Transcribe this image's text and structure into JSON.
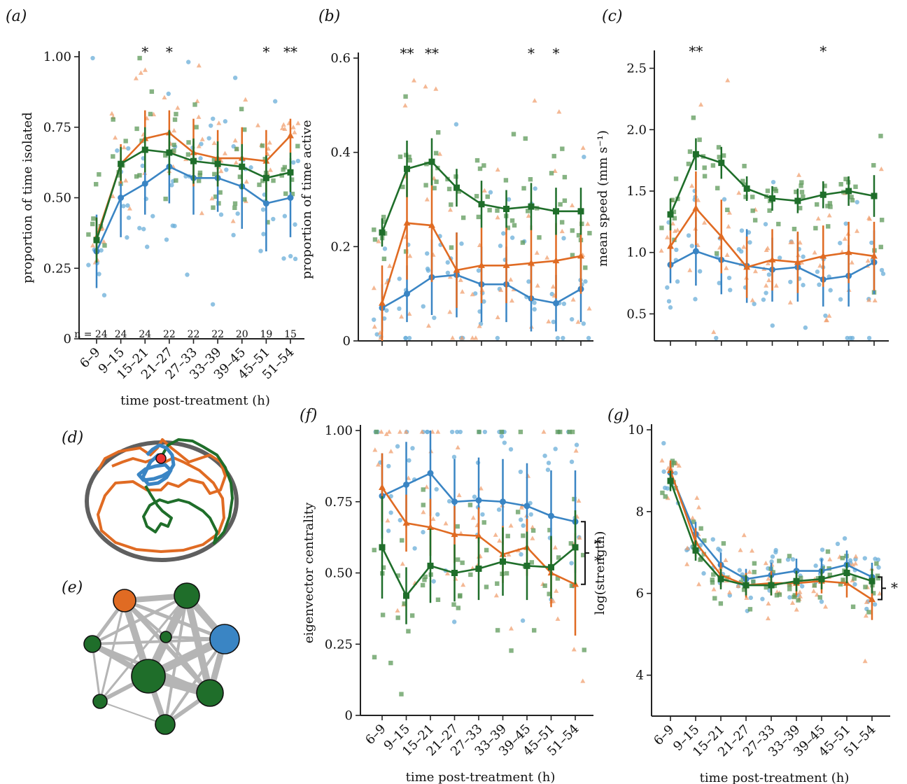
{
  "colors": {
    "blue": "#3a85c4",
    "orange": "#e06b23",
    "green": "#1f6e2a",
    "blue_pt": "#6aaed8",
    "orange_pt": "#f0a070",
    "green_pt": "#5e9a5a"
  },
  "panel_labels": {
    "a": "(a)",
    "b": "(b)",
    "c": "(c)",
    "d": "(d)",
    "e": "(e)",
    "f": "(f)",
    "g": "(g)"
  },
  "shared_xlabel": "time post-treatment (h)",
  "chart_data": [
    {
      "id": "a",
      "type": "line",
      "ylabel": "proportion of time isolated",
      "xlabel": "time post-treatment (h)",
      "categories": [
        "6–9",
        "9–15",
        "15–21",
        "21–27",
        "27–33",
        "33–39",
        "39–45",
        "45–51",
        "51–54"
      ],
      "ylim": [
        0,
        1
      ],
      "yticks": [
        0,
        0.25,
        0.5,
        0.75,
        1
      ],
      "ytick_labels": [
        "0",
        "0.25",
        "0.50",
        "0.75",
        "1.00"
      ],
      "series": [
        {
          "color": "blue",
          "marker": "circle",
          "values": [
            0.31,
            0.5,
            0.55,
            0.61,
            0.57,
            0.57,
            0.54,
            0.48,
            0.5
          ],
          "err": [
            0.13,
            0.14,
            0.11,
            0.13,
            0.13,
            0.12,
            0.15,
            0.17,
            0.14
          ]
        },
        {
          "color": "orange",
          "marker": "triangle",
          "values": [
            0.36,
            0.62,
            0.71,
            0.73,
            0.66,
            0.64,
            0.64,
            0.63,
            0.72
          ],
          "err": [
            0.07,
            0.07,
            0.1,
            0.08,
            0.12,
            0.1,
            0.11,
            0.11,
            0.06
          ]
        },
        {
          "color": "green",
          "marker": "square",
          "values": [
            0.35,
            0.62,
            0.67,
            0.66,
            0.63,
            0.62,
            0.61,
            0.57,
            0.59
          ],
          "err": [
            0.08,
            0.06,
            0.08,
            0.08,
            0.08,
            0.08,
            0.08,
            0.08,
            0.07
          ]
        }
      ],
      "significance": [
        "",
        "",
        "*",
        "*",
        "",
        "",
        "",
        "*",
        "**"
      ],
      "n_label": "n = 24",
      "n_values": [
        "24",
        "24",
        "24",
        "22",
        "22",
        "22",
        "20",
        "19",
        "15"
      ]
    },
    {
      "id": "b",
      "type": "line",
      "ylabel": "proportion of time active",
      "xlabel": "",
      "categories": [
        "",
        "",
        "",
        "",
        "",
        "",
        "",
        "",
        ""
      ],
      "ylim": [
        0,
        0.6
      ],
      "yticks": [
        0,
        0.2,
        0.4,
        0.6
      ],
      "ytick_labels": [
        "0",
        "0.2",
        "0.4",
        "0.6"
      ],
      "series": [
        {
          "color": "blue",
          "marker": "circle",
          "values": [
            0.07,
            0.1,
            0.135,
            0.14,
            0.12,
            0.12,
            0.09,
            0.08,
            0.11
          ],
          "err": [
            0.05,
            0.06,
            0.08,
            0.09,
            0.08,
            0.08,
            0.07,
            0.06,
            0.07
          ]
        },
        {
          "color": "orange",
          "marker": "triangle",
          "values": [
            0.08,
            0.25,
            0.245,
            0.15,
            0.16,
            0.16,
            0.165,
            0.17,
            0.18
          ],
          "err": [
            0.08,
            0.12,
            0.12,
            0.08,
            0.08,
            0.08,
            0.08,
            0.08,
            0.08
          ]
        },
        {
          "color": "green",
          "marker": "square",
          "values": [
            0.23,
            0.365,
            0.38,
            0.325,
            0.29,
            0.28,
            0.285,
            0.275,
            0.275
          ],
          "err": [
            0.03,
            0.06,
            0.05,
            0.04,
            0.05,
            0.04,
            0.05,
            0.05,
            0.05
          ]
        }
      ],
      "significance": [
        "",
        "**",
        "**",
        "",
        "",
        "",
        "*",
        "*",
        ""
      ]
    },
    {
      "id": "c",
      "type": "line",
      "ylabel": "mean speed (mm s⁻¹)",
      "xlabel": "",
      "categories": [
        "",
        "",
        "",
        "",
        "",
        "",
        "",
        "",
        ""
      ],
      "ylim": [
        0.28,
        2.6
      ],
      "yticks": [
        0.5,
        1.0,
        1.5,
        2.0,
        2.5
      ],
      "ytick_labels": [
        "0.5",
        "1.0",
        "1.5",
        "2.0",
        "2.5"
      ],
      "series": [
        {
          "color": "blue",
          "marker": "circle",
          "values": [
            0.9,
            1.01,
            0.94,
            0.89,
            0.86,
            0.88,
            0.78,
            0.81,
            0.92
          ],
          "err": [
            0.15,
            0.28,
            0.28,
            0.3,
            0.26,
            0.28,
            0.22,
            0.25,
            0.26
          ]
        },
        {
          "color": "orange",
          "marker": "triangle",
          "values": [
            1.05,
            1.36,
            1.13,
            0.88,
            0.94,
            0.92,
            0.97,
            1.0,
            0.97
          ],
          "err": [
            0.18,
            0.3,
            0.3,
            0.25,
            0.25,
            0.25,
            0.25,
            0.25,
            0.28
          ]
        },
        {
          "color": "green",
          "marker": "square",
          "values": [
            1.31,
            1.8,
            1.73,
            1.52,
            1.44,
            1.42,
            1.47,
            1.5,
            1.46
          ],
          "err": [
            0.13,
            0.13,
            0.13,
            0.1,
            0.1,
            0.1,
            0.11,
            0.12,
            0.17
          ]
        }
      ],
      "significance": [
        "",
        "**",
        "",
        "",
        "",
        "",
        "*",
        "",
        ""
      ]
    },
    {
      "id": "f",
      "type": "line",
      "ylabel": "eigenvector centrality",
      "xlabel": "time post-treatment (h)",
      "categories": [
        "6–9",
        "9–15",
        "15–21",
        "21–27",
        "27–33",
        "33–39",
        "39–45",
        "45–51",
        "51–54"
      ],
      "ylim": [
        0,
        1
      ],
      "yticks": [
        0,
        0.25,
        0.5,
        0.75,
        1
      ],
      "ytick_labels": [
        "0",
        "0.25",
        "0.50",
        "0.75",
        "1.00"
      ],
      "series": [
        {
          "color": "blue",
          "marker": "circle",
          "values": [
            0.77,
            0.81,
            0.85,
            0.75,
            0.755,
            0.75,
            0.735,
            0.7,
            0.68
          ],
          "err": [
            0.15,
            0.15,
            0.15,
            0.15,
            0.15,
            0.15,
            0.15,
            0.16,
            0.18
          ]
        },
        {
          "color": "orange",
          "marker": "triangle",
          "values": [
            0.8,
            0.675,
            0.66,
            0.635,
            0.63,
            0.565,
            0.59,
            0.5,
            0.46
          ],
          "err": [
            0.12,
            0.1,
            0.1,
            0.1,
            0.1,
            0.1,
            0.1,
            0.12,
            0.18
          ]
        },
        {
          "color": "green",
          "marker": "square",
          "values": [
            0.59,
            0.42,
            0.525,
            0.5,
            0.515,
            0.54,
            0.525,
            0.52,
            0.59
          ],
          "err": [
            0.18,
            0.1,
            0.13,
            0.1,
            0.11,
            0.12,
            0.12,
            0.11,
            0.13
          ]
        }
      ],
      "bracket_label": "* *"
    },
    {
      "id": "g",
      "type": "line",
      "ylabel": "log(strength)",
      "xlabel": "time post-treatment (h)",
      "categories": [
        "6–9",
        "9–15",
        "15–21",
        "21–27",
        "27–33",
        "33–39",
        "39–45",
        "45–51",
        "51–54"
      ],
      "ylim": [
        3,
        10
      ],
      "yticks": [
        4,
        6,
        8,
        10
      ],
      "ytick_labels": [
        "4",
        "6",
        "8",
        "10"
      ],
      "series": [
        {
          "color": "blue",
          "marker": "circle",
          "values": [
            8.95,
            7.45,
            6.7,
            6.35,
            6.45,
            6.55,
            6.55,
            6.7,
            6.4
          ],
          "err": [
            0.25,
            0.3,
            0.3,
            0.25,
            0.3,
            0.3,
            0.3,
            0.35,
            0.35
          ]
        },
        {
          "color": "orange",
          "marker": "triangle",
          "values": [
            9.0,
            7.25,
            6.45,
            6.2,
            6.25,
            6.25,
            6.3,
            6.25,
            5.85
          ],
          "err": [
            0.25,
            0.35,
            0.3,
            0.3,
            0.3,
            0.3,
            0.3,
            0.35,
            0.5
          ]
        },
        {
          "color": "green",
          "marker": "square",
          "values": [
            8.75,
            7.05,
            6.35,
            6.2,
            6.2,
            6.3,
            6.35,
            6.5,
            6.3
          ],
          "err": [
            0.25,
            0.25,
            0.25,
            0.25,
            0.25,
            0.25,
            0.25,
            0.25,
            0.3
          ]
        }
      ],
      "bracket_label": "*"
    }
  ]
}
